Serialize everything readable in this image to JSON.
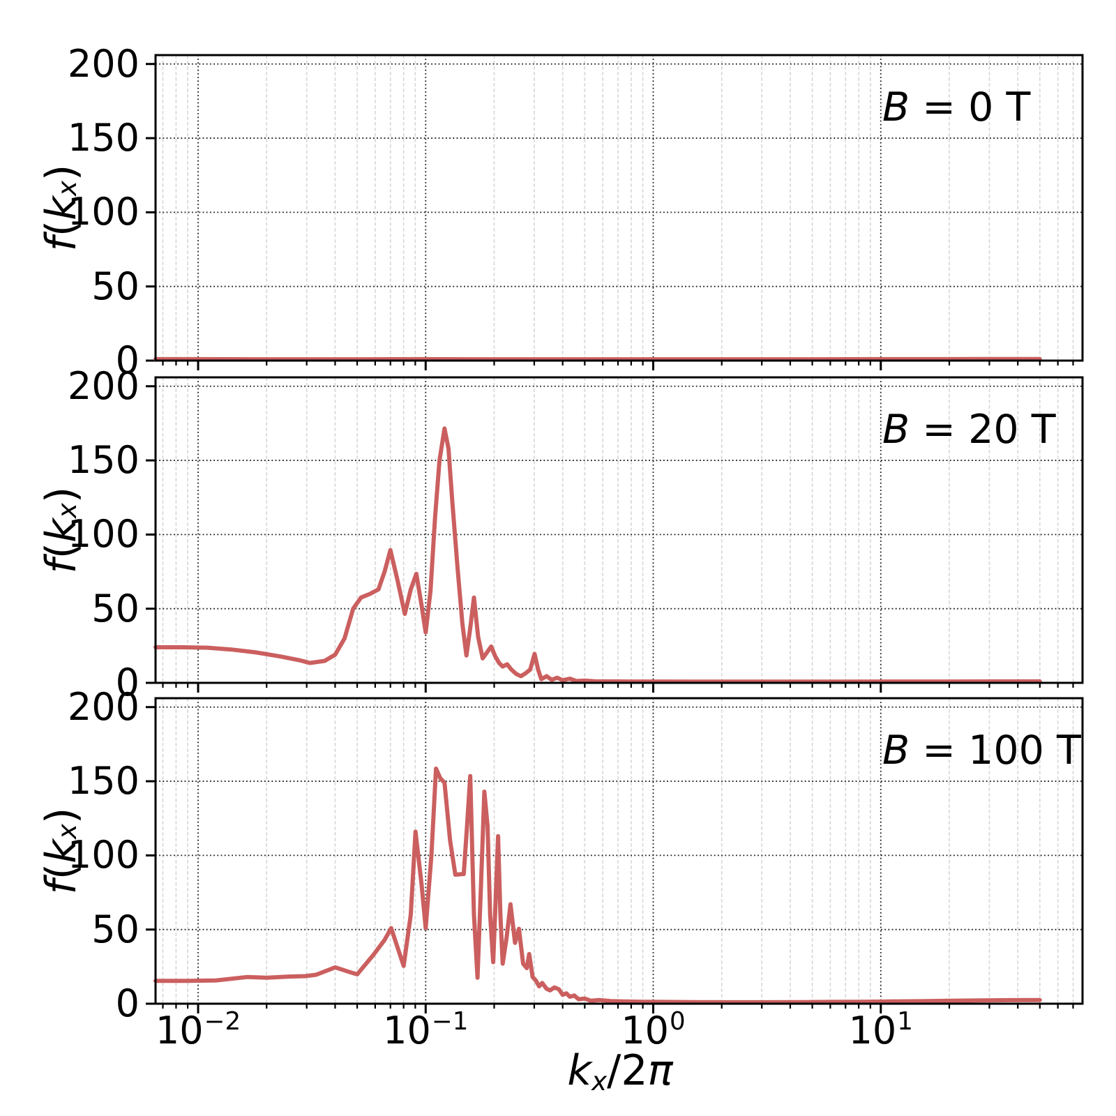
{
  "figure": {
    "background": "#ffffff",
    "line_color": "#cb5f5f",
    "spine_color": "#000000",
    "major_grid_color": "#1b1b1b",
    "minor_grid_color": "#d9d9d9"
  },
  "labels": {
    "ylabel_f": "f",
    "ylabel_open": "(",
    "ylabel_k": "k",
    "ylabel_sub": "x",
    "ylabel_close": ")",
    "xlabel_k": "k",
    "xlabel_sub": "x",
    "xlabel_mid": "/2",
    "xlabel_pi": "π"
  },
  "panels": [
    {
      "id": "b0",
      "label_b": "B",
      "label_rest": " = 0 T"
    },
    {
      "id": "b20",
      "label_b": "B",
      "label_rest": " = 20 T"
    },
    {
      "id": "b100",
      "label_b": "B",
      "label_rest": " = 100 T"
    }
  ],
  "yaxis": {
    "label": "f(k_x)",
    "ticks": [
      0,
      50,
      100,
      150,
      200
    ],
    "tick_labels": [
      "0",
      "50",
      "100",
      "150",
      "200"
    ],
    "ylim": [
      0,
      206
    ]
  },
  "xaxis": {
    "label": "k_x/2π",
    "scale": "log",
    "xlim": [
      0.0065,
      77
    ],
    "ticks": [
      {
        "value": 0.01,
        "base": "10",
        "exp": "−2"
      },
      {
        "value": 0.1,
        "base": "10",
        "exp": "−1"
      },
      {
        "value": 1,
        "base": "10",
        "exp": "0"
      },
      {
        "value": 10,
        "base": "10",
        "exp": "1"
      }
    ]
  },
  "chart_data": [
    {
      "type": "line",
      "annotation": "B = 0 T",
      "xlabel": "k_x/2π",
      "ylabel": "f(k_x)",
      "xscale": "log",
      "xlim": [
        0.0065,
        77
      ],
      "ylim": [
        0,
        206
      ],
      "grid": true,
      "series": [
        {
          "name": "B = 0 T",
          "color": "#cb5f5f",
          "points": [
            [
              0.0065,
              1.0
            ],
            [
              0.01,
              1.0
            ],
            [
              0.02,
              0.9
            ],
            [
              0.05,
              0.9
            ],
            [
              0.1,
              1.0
            ],
            [
              0.2,
              0.9
            ],
            [
              0.5,
              0.9
            ],
            [
              1,
              0.9
            ],
            [
              2,
              0.9
            ],
            [
              5,
              0.9
            ],
            [
              10,
              1.0
            ],
            [
              20,
              1.0
            ],
            [
              35,
              1.1
            ],
            [
              50,
              1.1
            ]
          ]
        }
      ]
    },
    {
      "type": "line",
      "annotation": "B = 20 T",
      "xlabel": "k_x/2π",
      "ylabel": "f(k_x)",
      "xscale": "log",
      "xlim": [
        0.0065,
        77
      ],
      "ylim": [
        0,
        206
      ],
      "grid": true,
      "series": [
        {
          "name": "B = 20 T",
          "color": "#cb5f5f",
          "points": [
            [
              0.0065,
              24
            ],
            [
              0.0085,
              24
            ],
            [
              0.011,
              23.7
            ],
            [
              0.014,
              22.5
            ],
            [
              0.018,
              20.5
            ],
            [
              0.023,
              17.8
            ],
            [
              0.028,
              15.2
            ],
            [
              0.031,
              13.4
            ],
            [
              0.036,
              14.8
            ],
            [
              0.04,
              19
            ],
            [
              0.044,
              30
            ],
            [
              0.048,
              50
            ],
            [
              0.052,
              57.5
            ],
            [
              0.057,
              60
            ],
            [
              0.062,
              63
            ],
            [
              0.066,
              75
            ],
            [
              0.07,
              89.5
            ],
            [
              0.075,
              70
            ],
            [
              0.081,
              46.5
            ],
            [
              0.086,
              63
            ],
            [
              0.091,
              73.5
            ],
            [
              0.096,
              52
            ],
            [
              0.1,
              34
            ],
            [
              0.105,
              62
            ],
            [
              0.11,
              112
            ],
            [
              0.115,
              150
            ],
            [
              0.121,
              171.5
            ],
            [
              0.126,
              158
            ],
            [
              0.131,
              122
            ],
            [
              0.138,
              78
            ],
            [
              0.145,
              40
            ],
            [
              0.151,
              18.5
            ],
            [
              0.157,
              37
            ],
            [
              0.163,
              57.5
            ],
            [
              0.17,
              31
            ],
            [
              0.178,
              16.5
            ],
            [
              0.186,
              20.5
            ],
            [
              0.194,
              24.5
            ],
            [
              0.202,
              18
            ],
            [
              0.21,
              13.5
            ],
            [
              0.218,
              11
            ],
            [
              0.228,
              12.5
            ],
            [
              0.238,
              9
            ],
            [
              0.25,
              6
            ],
            [
              0.262,
              4.5
            ],
            [
              0.275,
              6.5
            ],
            [
              0.288,
              9
            ],
            [
              0.301,
              19.5
            ],
            [
              0.312,
              9
            ],
            [
              0.322,
              2.5
            ],
            [
              0.34,
              4.5
            ],
            [
              0.358,
              2
            ],
            [
              0.378,
              3.5
            ],
            [
              0.4,
              1.8
            ],
            [
              0.43,
              2.8
            ],
            [
              0.46,
              1.2
            ],
            [
              0.5,
              1.5
            ],
            [
              0.56,
              1
            ],
            [
              0.65,
              1
            ],
            [
              0.8,
              0.9
            ],
            [
              1,
              0.9
            ],
            [
              1.5,
              0.8
            ],
            [
              2.5,
              0.8
            ],
            [
              4,
              0.8
            ],
            [
              7,
              0.8
            ],
            [
              12,
              0.9
            ],
            [
              20,
              0.9
            ],
            [
              35,
              1
            ],
            [
              50,
              1
            ]
          ]
        }
      ]
    },
    {
      "type": "line",
      "annotation": "B = 100 T",
      "xlabel": "k_x/2π",
      "ylabel": "f(k_x)",
      "xscale": "log",
      "xlim": [
        0.0065,
        77
      ],
      "ylim": [
        0,
        206
      ],
      "grid": true,
      "series": [
        {
          "name": "B = 100 T",
          "color": "#cb5f5f",
          "points": [
            [
              0.0065,
              15.4
            ],
            [
              0.009,
              15.4
            ],
            [
              0.012,
              15.7
            ],
            [
              0.0165,
              18
            ],
            [
              0.02,
              17.5
            ],
            [
              0.025,
              18.3
            ],
            [
              0.0295,
              18.6
            ],
            [
              0.033,
              19.5
            ],
            [
              0.04,
              24.5
            ],
            [
              0.046,
              21.5
            ],
            [
              0.05,
              19.8
            ],
            [
              0.059,
              33
            ],
            [
              0.066,
              43
            ],
            [
              0.0705,
              51
            ],
            [
              0.08,
              25.5
            ],
            [
              0.086,
              60
            ],
            [
              0.0902,
              116
            ],
            [
              0.096,
              80
            ],
            [
              0.1,
              51
            ],
            [
              0.106,
              100
            ],
            [
              0.111,
              158.5
            ],
            [
              0.116,
              152
            ],
            [
              0.121,
              149
            ],
            [
              0.128,
              110
            ],
            [
              0.135,
              87
            ],
            [
              0.147,
              87.5
            ],
            [
              0.152,
              120
            ],
            [
              0.157,
              153.5
            ],
            [
              0.163,
              60
            ],
            [
              0.169,
              17.5
            ],
            [
              0.175,
              80
            ],
            [
              0.181,
              143
            ],
            [
              0.187,
              120
            ],
            [
              0.192,
              60
            ],
            [
              0.198,
              28
            ],
            [
              0.203,
              70
            ],
            [
              0.208,
              113
            ],
            [
              0.213,
              60
            ],
            [
              0.218,
              27
            ],
            [
              0.227,
              45
            ],
            [
              0.236,
              67
            ],
            [
              0.247,
              41
            ],
            [
              0.257,
              50.5
            ],
            [
              0.268,
              27
            ],
            [
              0.278,
              24
            ],
            [
              0.285,
              33.5
            ],
            [
              0.295,
              18
            ],
            [
              0.305,
              15.6
            ],
            [
              0.315,
              11.7
            ],
            [
              0.325,
              14
            ],
            [
              0.34,
              10
            ],
            [
              0.352,
              9
            ],
            [
              0.368,
              11
            ],
            [
              0.385,
              9.7
            ],
            [
              0.4,
              6
            ],
            [
              0.415,
              7
            ],
            [
              0.43,
              4.7
            ],
            [
              0.45,
              5.5
            ],
            [
              0.47,
              3
            ],
            [
              0.5,
              3.5
            ],
            [
              0.53,
              2
            ],
            [
              0.58,
              2.5
            ],
            [
              0.65,
              1.8
            ],
            [
              0.75,
              1.5
            ],
            [
              0.9,
              1.3
            ],
            [
              1.1,
              1.2
            ],
            [
              1.5,
              1.1
            ],
            [
              2,
              1
            ],
            [
              3,
              1
            ],
            [
              4.5,
              1.1
            ],
            [
              6,
              1.2
            ],
            [
              8,
              1.3
            ],
            [
              11,
              1.5
            ],
            [
              15,
              1.7
            ],
            [
              20,
              2
            ],
            [
              28,
              2.2
            ],
            [
              38,
              2.4
            ],
            [
              50,
              2.5
            ]
          ]
        }
      ]
    }
  ]
}
